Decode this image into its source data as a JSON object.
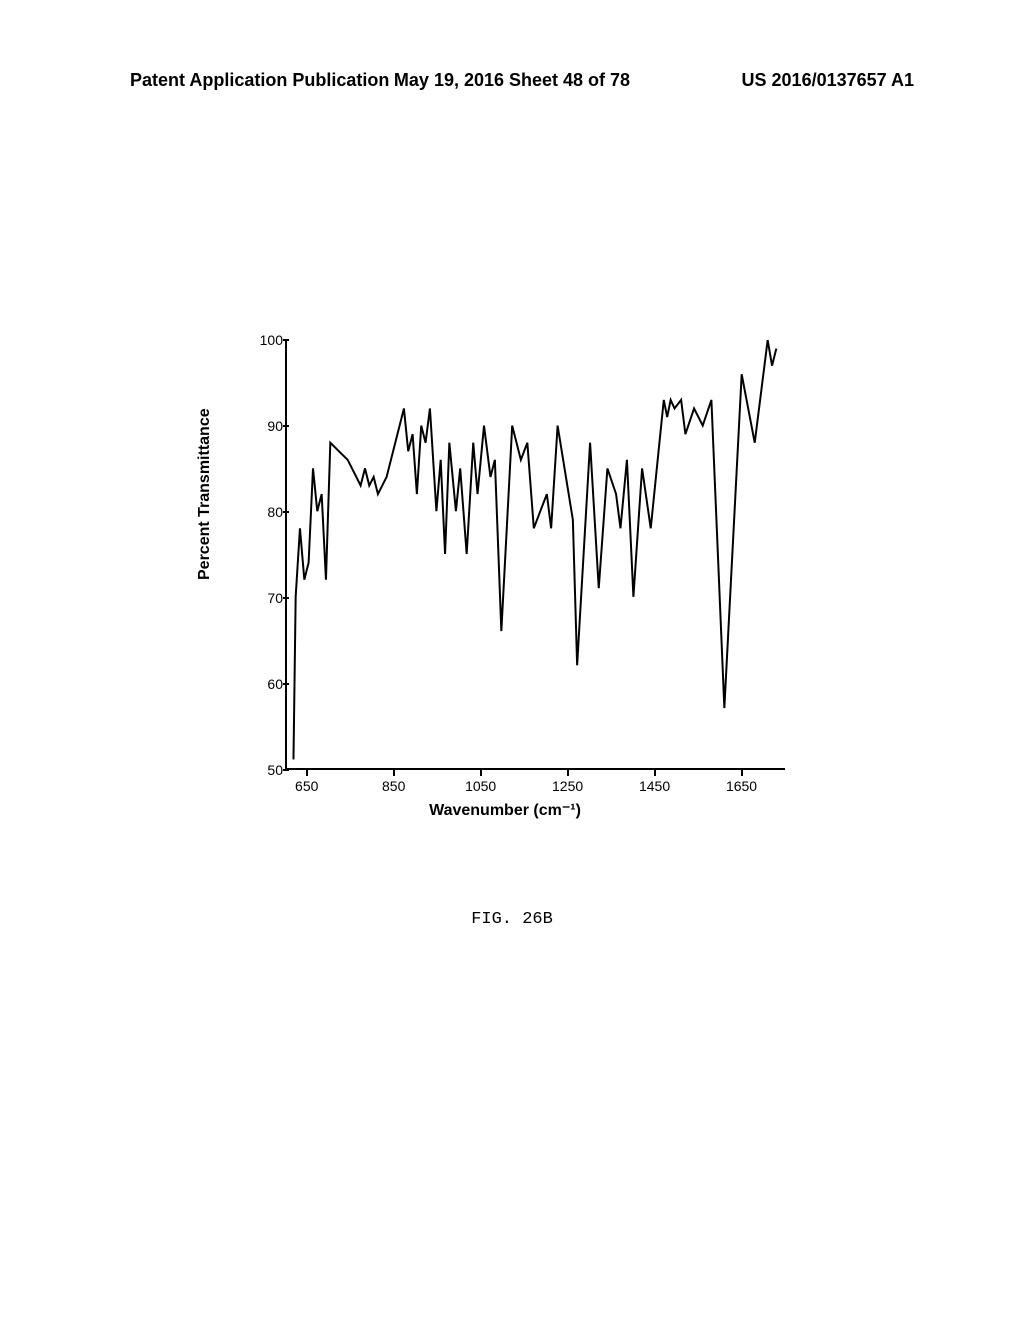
{
  "header": {
    "left": "Patent Application Publication",
    "center": "May 19, 2016  Sheet 48 of 78",
    "right": "US 2016/0137657 A1"
  },
  "chart": {
    "type": "line",
    "y_axis_label": "Percent Transmittance",
    "x_axis_label": "Wavenumber (cm⁻¹)",
    "xlim": [
      600,
      1750
    ],
    "ylim": [
      50,
      100
    ],
    "x_ticks": [
      650,
      850,
      1050,
      1250,
      1450,
      1650
    ],
    "y_ticks": [
      50,
      60,
      70,
      80,
      90,
      100
    ],
    "background_color": "#ffffff",
    "line_color": "#000000",
    "line_width": 2,
    "label_fontsize": 16,
    "tick_fontsize": 14,
    "data": [
      [
        615,
        51
      ],
      [
        620,
        70
      ],
      [
        630,
        78
      ],
      [
        640,
        72
      ],
      [
        650,
        74
      ],
      [
        660,
        85
      ],
      [
        670,
        80
      ],
      [
        680,
        82
      ],
      [
        690,
        72
      ],
      [
        700,
        88
      ],
      [
        720,
        87
      ],
      [
        740,
        86
      ],
      [
        760,
        84
      ],
      [
        770,
        83
      ],
      [
        780,
        85
      ],
      [
        790,
        83
      ],
      [
        800,
        84
      ],
      [
        810,
        82
      ],
      [
        830,
        84
      ],
      [
        850,
        88
      ],
      [
        870,
        92
      ],
      [
        880,
        87
      ],
      [
        890,
        89
      ],
      [
        900,
        82
      ],
      [
        910,
        90
      ],
      [
        920,
        88
      ],
      [
        930,
        92
      ],
      [
        945,
        80
      ],
      [
        955,
        86
      ],
      [
        965,
        75
      ],
      [
        975,
        88
      ],
      [
        990,
        80
      ],
      [
        1000,
        85
      ],
      [
        1015,
        75
      ],
      [
        1030,
        88
      ],
      [
        1040,
        82
      ],
      [
        1055,
        90
      ],
      [
        1070,
        84
      ],
      [
        1080,
        86
      ],
      [
        1095,
        66
      ],
      [
        1120,
        90
      ],
      [
        1140,
        86
      ],
      [
        1155,
        88
      ],
      [
        1170,
        78
      ],
      [
        1185,
        80
      ],
      [
        1200,
        82
      ],
      [
        1210,
        78
      ],
      [
        1225,
        90
      ],
      [
        1260,
        79
      ],
      [
        1270,
        62
      ],
      [
        1300,
        88
      ],
      [
        1320,
        71
      ],
      [
        1340,
        85
      ],
      [
        1360,
        82
      ],
      [
        1370,
        78
      ],
      [
        1385,
        86
      ],
      [
        1400,
        70
      ],
      [
        1420,
        85
      ],
      [
        1440,
        78
      ],
      [
        1460,
        88
      ],
      [
        1470,
        93
      ],
      [
        1478,
        91
      ],
      [
        1486,
        93
      ],
      [
        1495,
        92
      ],
      [
        1510,
        93
      ],
      [
        1520,
        89
      ],
      [
        1540,
        92
      ],
      [
        1560,
        90
      ],
      [
        1580,
        93
      ],
      [
        1610,
        57
      ],
      [
        1650,
        96
      ],
      [
        1680,
        88
      ],
      [
        1710,
        100
      ],
      [
        1720,
        97
      ],
      [
        1730,
        99
      ]
    ]
  },
  "caption": "FIG. 26B"
}
